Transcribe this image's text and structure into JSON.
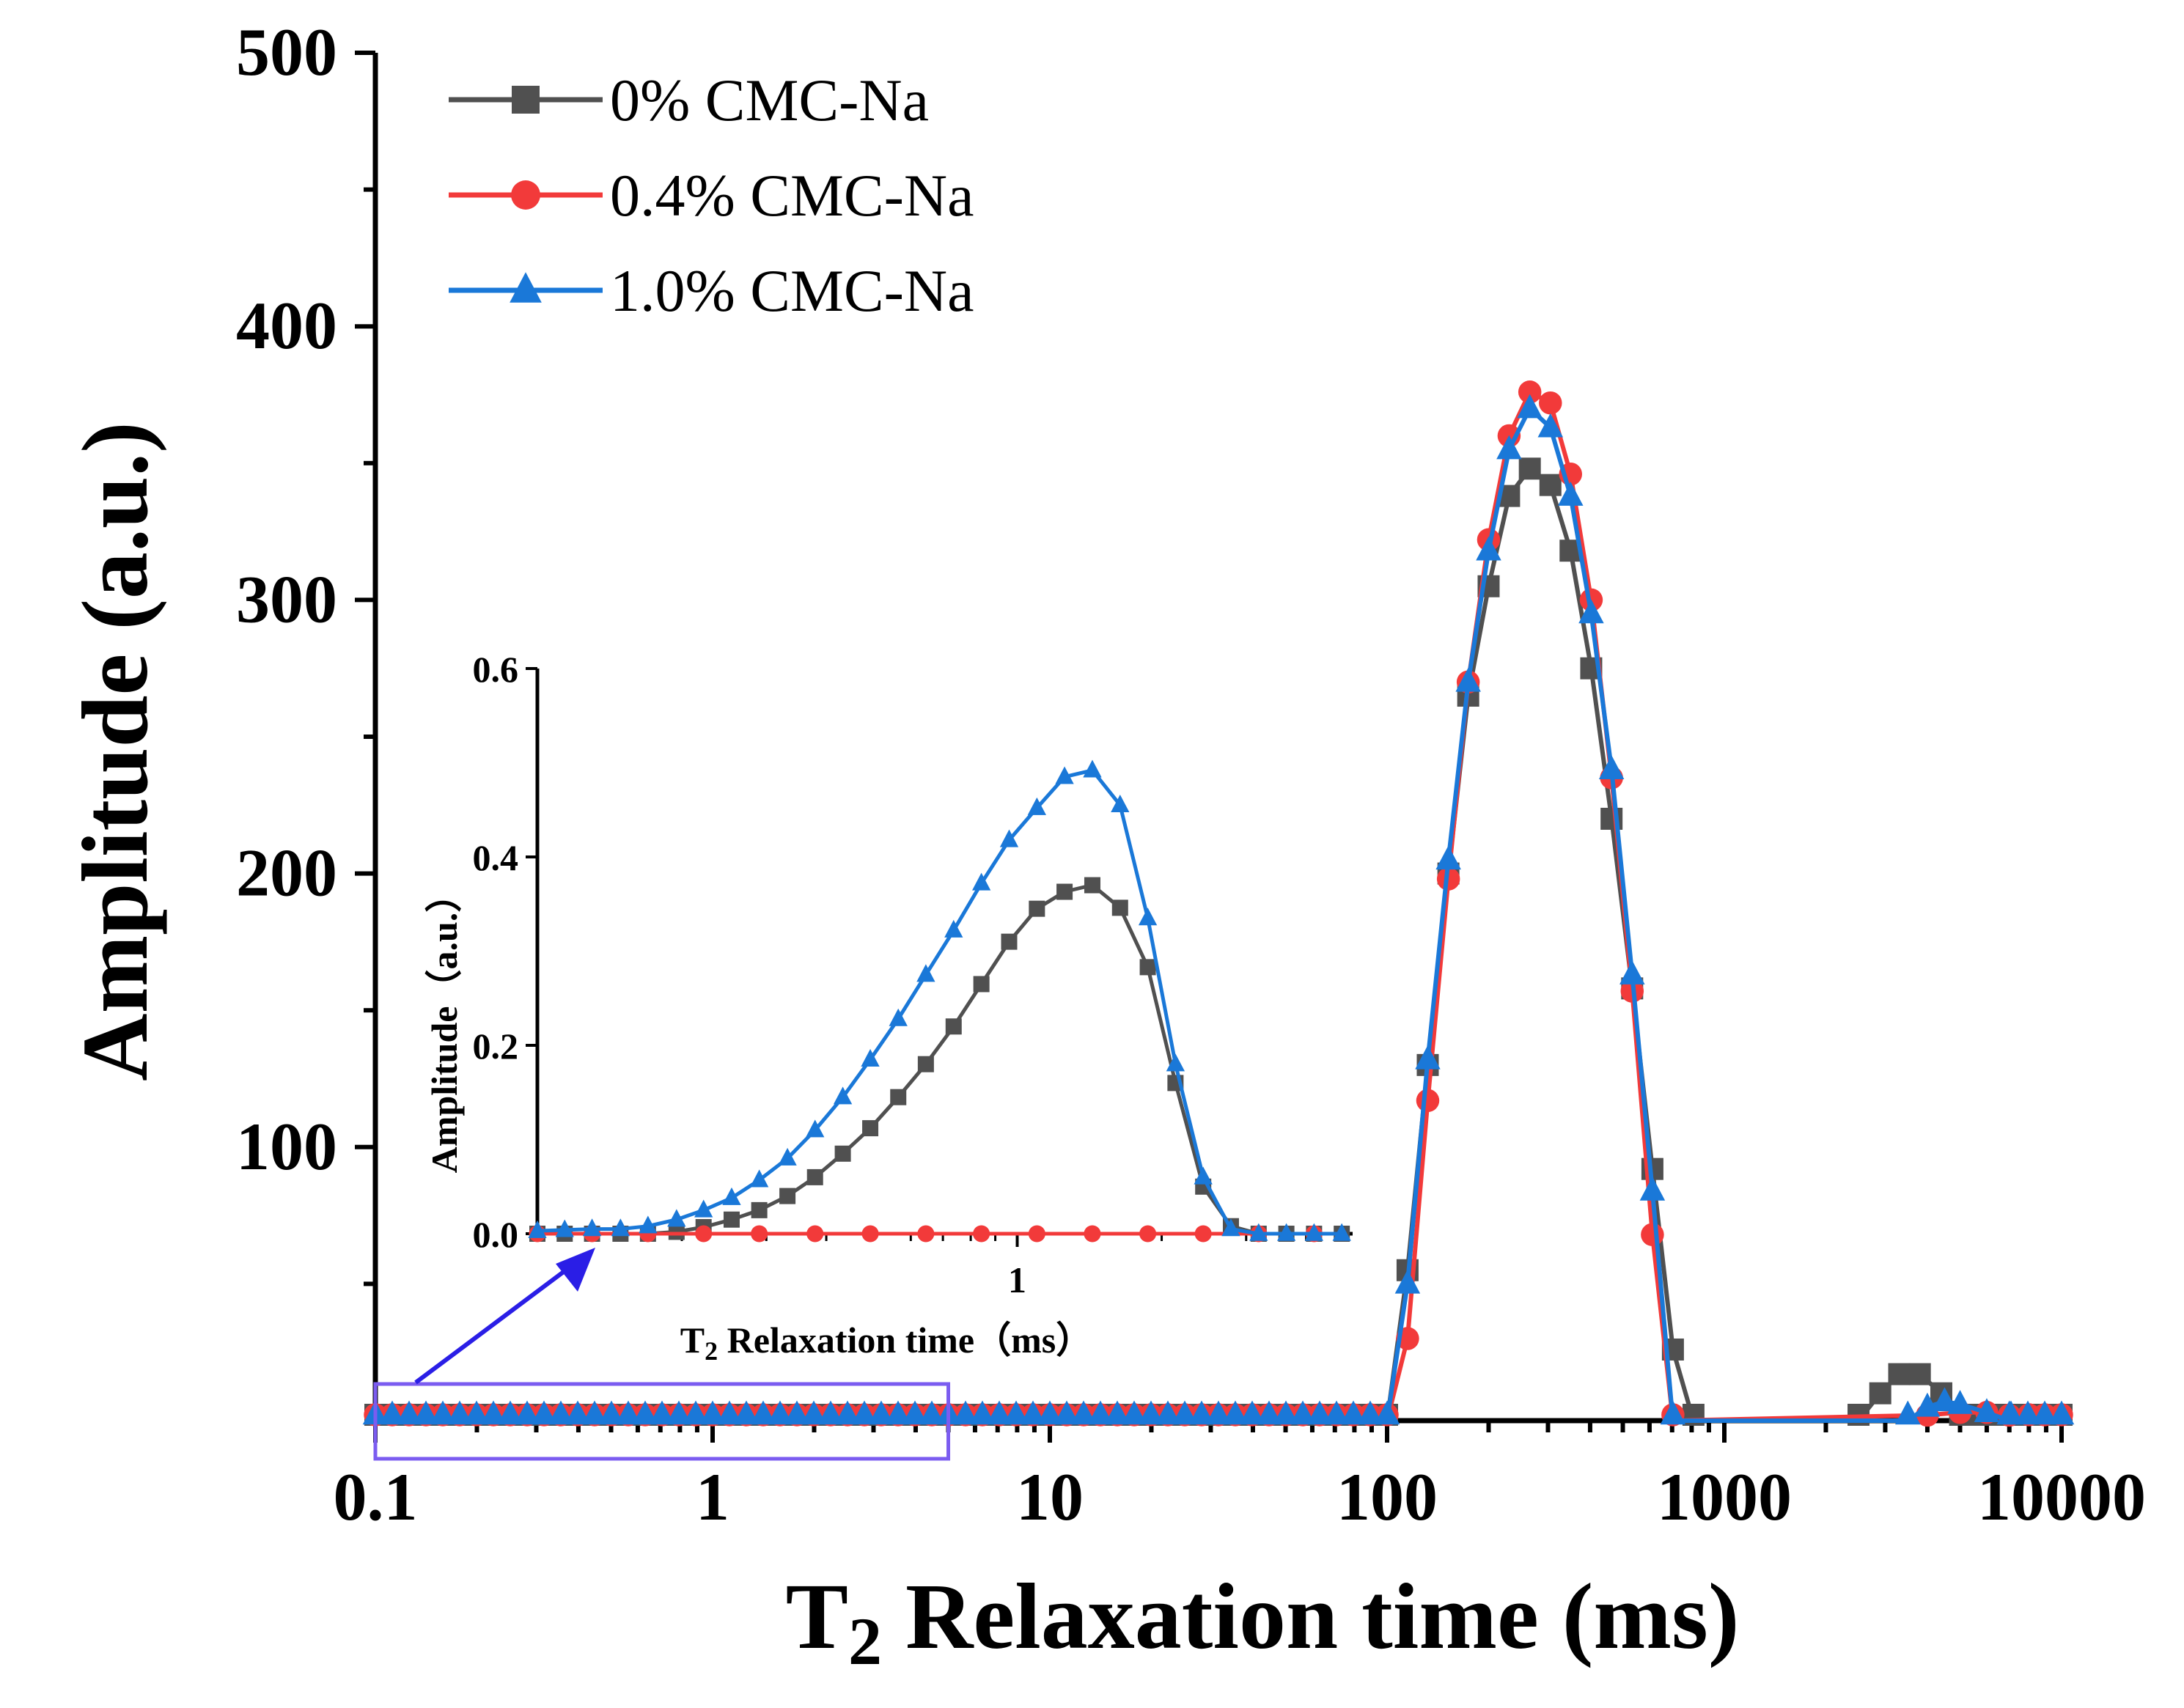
{
  "chart_data": {
    "type": "line",
    "title": "",
    "xscale": "log",
    "xlabel": {
      "prefix": "T",
      "sub": "2",
      "rest": " Relaxation time (ms)"
    },
    "ylabel": "Amplitude (a.u.)",
    "xlim": [
      0.1,
      10000
    ],
    "ylim": [
      0,
      500
    ],
    "xticks": [
      0.1,
      1,
      10,
      100,
      1000,
      10000
    ],
    "xtick_labels": [
      "0.1",
      "1",
      "10",
      "100",
      "1000",
      "10000"
    ],
    "yticks": [
      100,
      200,
      300,
      400,
      500
    ],
    "ytick_labels": [
      "100",
      "200",
      "300",
      "400",
      "500"
    ],
    "legend_position": "top-left",
    "series": [
      {
        "name": "0% CMC-Na",
        "color": "#505050",
        "marker": "square",
        "points": [
          [
            100,
            0
          ],
          [
            115,
            55
          ],
          [
            132,
            130
          ],
          [
            152,
            200
          ],
          [
            174,
            265
          ],
          [
            200,
            305
          ],
          [
            230,
            338
          ],
          [
            265,
            348
          ],
          [
            305,
            342
          ],
          [
            350,
            318
          ],
          [
            403,
            275
          ],
          [
            463,
            220
          ],
          [
            533,
            158
          ],
          [
            612,
            92
          ],
          [
            704,
            26
          ],
          [
            810,
            0
          ],
          [
            2500,
            0
          ],
          [
            2900,
            10
          ],
          [
            3300,
            17
          ],
          [
            3800,
            17
          ],
          [
            4400,
            10
          ],
          [
            5000,
            0
          ]
        ]
      },
      {
        "name": "0.4% CMC-Na",
        "color": "#f23a3a",
        "marker": "circle",
        "points": [
          [
            100,
            0
          ],
          [
            115,
            30
          ],
          [
            132,
            117
          ],
          [
            152,
            198
          ],
          [
            174,
            270
          ],
          [
            200,
            322
          ],
          [
            230,
            360
          ],
          [
            265,
            376
          ],
          [
            305,
            372
          ],
          [
            350,
            346
          ],
          [
            403,
            300
          ],
          [
            463,
            235
          ],
          [
            533,
            157
          ],
          [
            612,
            68
          ],
          [
            704,
            0
          ],
          [
            4000,
            2
          ],
          [
            5000,
            3
          ],
          [
            6000,
            3
          ],
          [
            7000,
            2
          ],
          [
            8000,
            0
          ]
        ]
      },
      {
        "name": "1.0% CMC-Na",
        "color": "#1a78d8",
        "marker": "triangle",
        "points": [
          [
            100,
            0
          ],
          [
            115,
            50
          ],
          [
            132,
            132
          ],
          [
            152,
            205
          ],
          [
            174,
            270
          ],
          [
            200,
            318
          ],
          [
            230,
            355
          ],
          [
            265,
            370
          ],
          [
            305,
            363
          ],
          [
            350,
            338
          ],
          [
            403,
            295
          ],
          [
            463,
            238
          ],
          [
            533,
            163
          ],
          [
            612,
            84
          ],
          [
            704,
            0
          ],
          [
            3500,
            0
          ],
          [
            4000,
            5
          ],
          [
            4500,
            7
          ],
          [
            5000,
            6
          ],
          [
            6000,
            3
          ],
          [
            7000,
            0
          ]
        ]
      }
    ],
    "inset": {
      "xlabel": {
        "prefix": "T",
        "sub": "2",
        "rest": " Relaxation time（ms）"
      },
      "ylabel": "Amplitude（a.u.）",
      "xscale": "log",
      "xlim": [
        0.1,
        5
      ],
      "ylim": [
        0,
        0.6
      ],
      "yticks": [
        0.0,
        0.2,
        0.4,
        0.6
      ],
      "ytick_labels": [
        "0.0",
        "0.2",
        "0.4",
        "0.6"
      ],
      "xticks": [
        1
      ],
      "xtick_labels": [
        "1"
      ],
      "series": [
        {
          "name": "0% CMC-Na",
          "points": [
            [
              0.1,
              0
            ],
            [
              0.114,
              0
            ],
            [
              0.13,
              0
            ],
            [
              0.149,
              0
            ],
            [
              0.17,
              0
            ],
            [
              0.195,
              0.002
            ],
            [
              0.222,
              0.007
            ],
            [
              0.254,
              0.015
            ],
            [
              0.29,
              0.025
            ],
            [
              0.332,
              0.04
            ],
            [
              0.379,
              0.06
            ],
            [
              0.433,
              0.085
            ],
            [
              0.494,
              0.112
            ],
            [
              0.565,
              0.145
            ],
            [
              0.645,
              0.18
            ],
            [
              0.737,
              0.22
            ],
            [
              0.842,
              0.265
            ],
            [
              0.962,
              0.31
            ],
            [
              1.099,
              0.345
            ],
            [
              1.255,
              0.363
            ],
            [
              1.434,
              0.37
            ],
            [
              1.638,
              0.346
            ],
            [
              1.871,
              0.283
            ],
            [
              2.137,
              0.16
            ],
            [
              2.441,
              0.05
            ],
            [
              2.788,
              0.008
            ],
            [
              3.185,
              0
            ],
            [
              3.638,
              0
            ],
            [
              4.155,
              0
            ],
            [
              4.746,
              0
            ]
          ]
        },
        {
          "name": "0.4% CMC-Na",
          "points": [
            [
              0.1,
              0
            ],
            [
              0.13,
              0
            ],
            [
              0.17,
              0
            ],
            [
              0.222,
              0
            ],
            [
              0.29,
              0
            ],
            [
              0.379,
              0
            ],
            [
              0.494,
              0
            ],
            [
              0.645,
              0
            ],
            [
              0.842,
              0
            ],
            [
              1.099,
              0
            ],
            [
              1.434,
              0
            ],
            [
              1.871,
              0
            ],
            [
              2.441,
              0
            ],
            [
              3.185,
              0
            ],
            [
              4.155,
              0
            ]
          ]
        },
        {
          "name": "1.0% CMC-Na",
          "points": [
            [
              0.1,
              0.003
            ],
            [
              0.114,
              0.004
            ],
            [
              0.13,
              0.005
            ],
            [
              0.149,
              0.005
            ],
            [
              0.17,
              0.008
            ],
            [
              0.195,
              0.015
            ],
            [
              0.222,
              0.025
            ],
            [
              0.254,
              0.038
            ],
            [
              0.29,
              0.057
            ],
            [
              0.332,
              0.08
            ],
            [
              0.379,
              0.11
            ],
            [
              0.433,
              0.145
            ],
            [
              0.494,
              0.185
            ],
            [
              0.565,
              0.228
            ],
            [
              0.645,
              0.275
            ],
            [
              0.737,
              0.322
            ],
            [
              0.842,
              0.372
            ],
            [
              0.962,
              0.418
            ],
            [
              1.099,
              0.452
            ],
            [
              1.255,
              0.485
            ],
            [
              1.434,
              0.492
            ],
            [
              1.638,
              0.455
            ],
            [
              1.871,
              0.335
            ],
            [
              2.137,
              0.18
            ],
            [
              2.441,
              0.06
            ],
            [
              2.788,
              0.005
            ],
            [
              3.185,
              0
            ],
            [
              3.638,
              0
            ],
            [
              4.155,
              0
            ],
            [
              4.746,
              0
            ]
          ]
        }
      ]
    }
  }
}
